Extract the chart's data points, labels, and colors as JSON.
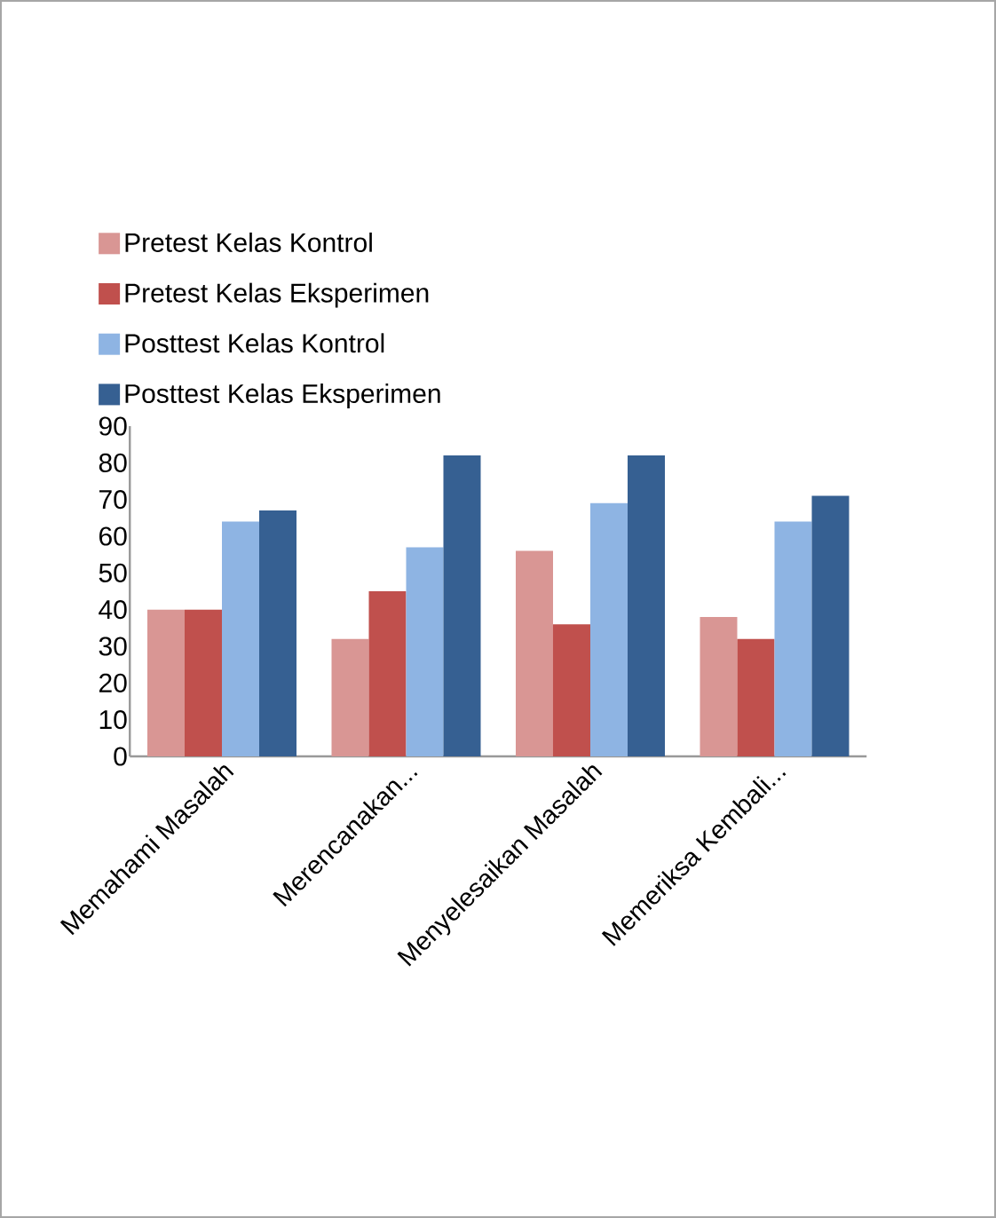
{
  "chart_data": {
    "type": "bar",
    "categories": [
      "Memahami Masalah",
      "Merencanakan...",
      "Menyelesaikan Masalah",
      "Memeriksa Kembali..."
    ],
    "series": [
      {
        "name": "Pretest Kelas Kontrol",
        "color": "#d99694",
        "values": [
          40,
          32,
          56,
          38
        ]
      },
      {
        "name": "Pretest Kelas Eksperimen",
        "color": "#c0504d",
        "values": [
          40,
          45,
          36,
          32
        ]
      },
      {
        "name": "Posttest Kelas Kontrol",
        "color": "#8eb4e3",
        "values": [
          64,
          57,
          69,
          64
        ]
      },
      {
        "name": "Posttest Kelas Eksperimen",
        "color": "#366092",
        "values": [
          67,
          82,
          82,
          71
        ]
      }
    ],
    "ylim": [
      0,
      90
    ],
    "yticks": [
      0,
      10,
      20,
      30,
      40,
      50,
      60,
      70,
      80,
      90
    ],
    "grid": false,
    "legend": "top"
  }
}
